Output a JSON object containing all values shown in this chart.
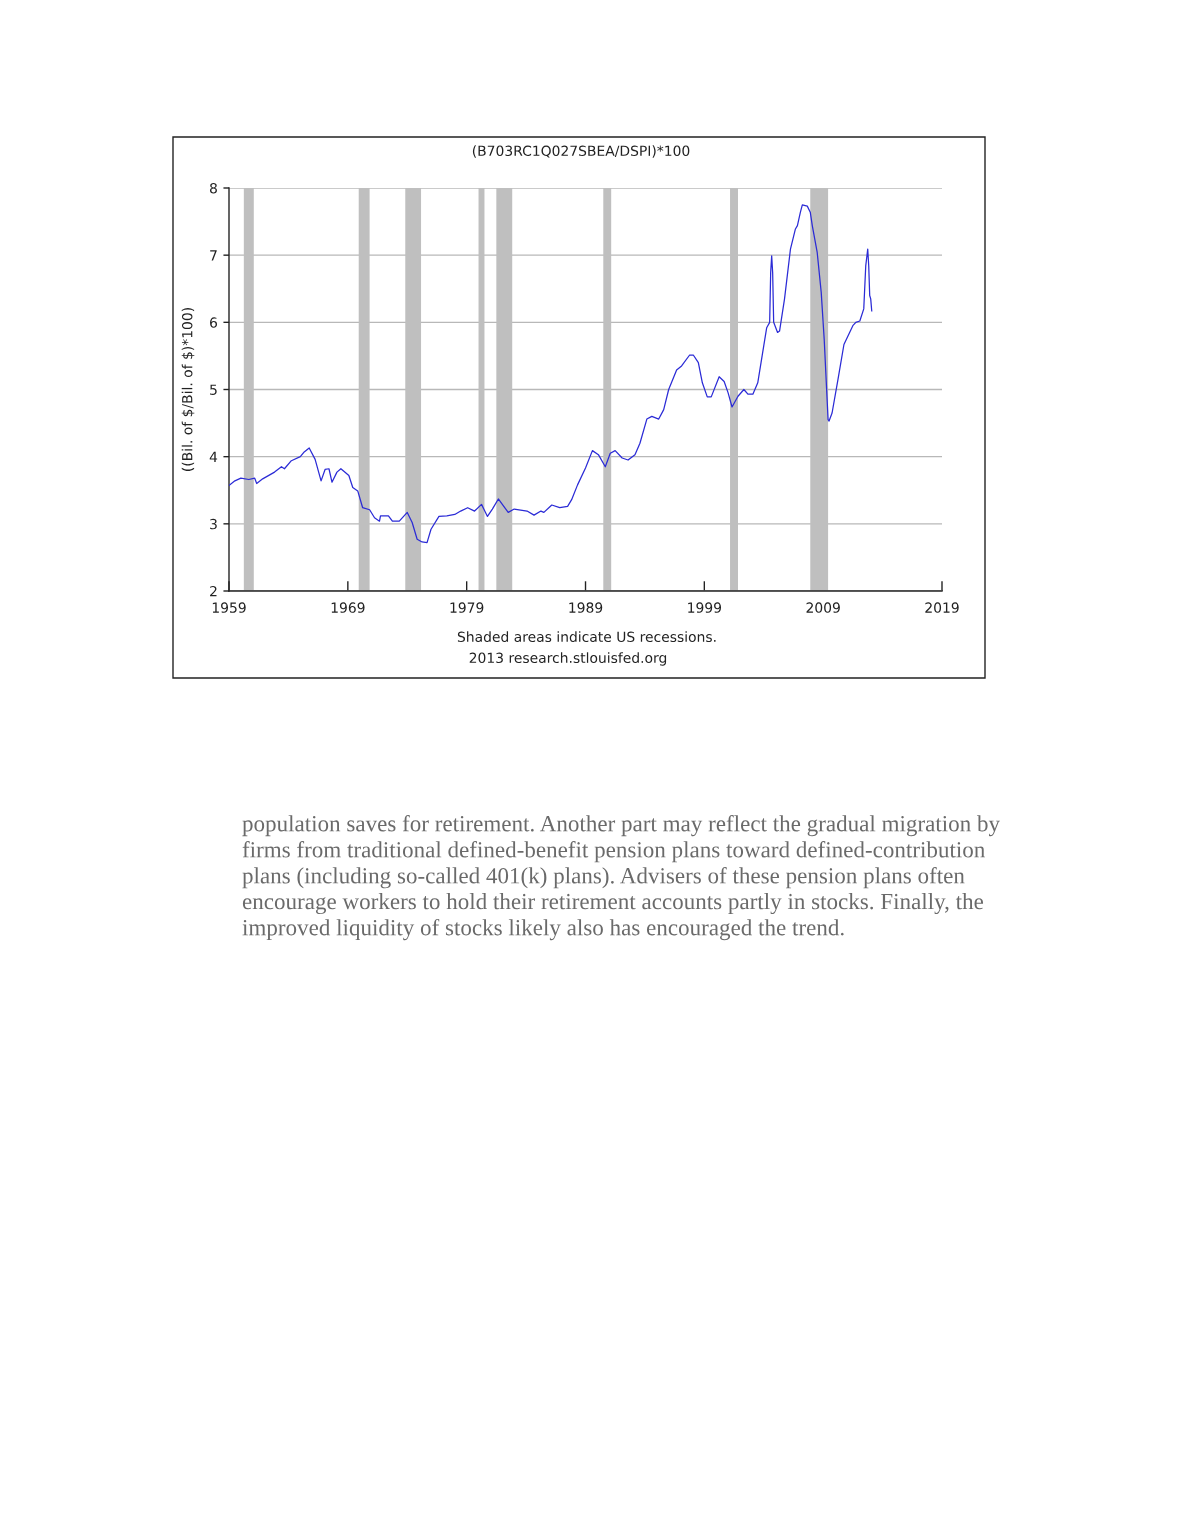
{
  "chart_data": {
    "type": "line",
    "title": "(B703RC1Q027SBEA/DSPI)*100",
    "ylabel": "((Bil. of $/Bil. of $)*100)",
    "annotations": [
      "Shaded areas indicate US recessions.",
      "2013 research.stlouisfed.org",
      "population saves for retirement. Another part may reflect the gradual migration by\nfirms from traditional defined-benefit pension plans toward defined-contribution\nplans (including so-called 401(k) plans). Advisers of these pension plans often\nencourage workers to hold their retirement accounts partly in stocks. Finally, the\nimproved liquidity of stocks likely also has encouraged the trend."
    ],
    "x": [
      "1959-01",
      "1959-07",
      "1960-01",
      "1960-09",
      "1961-03",
      "1961-05",
      "1961-11",
      "1962-11",
      "1963-06",
      "1963-09",
      "1964-04",
      "1965-01",
      "1965-05",
      "1965-10",
      "1966-04",
      "1966-10",
      "1967-02",
      "1967-06",
      "1967-09",
      "1968-02",
      "1968-06",
      "1969-02",
      "1969-06",
      "1969-11",
      "1970-04",
      "1970-11",
      "1971-04",
      "1971-09",
      "1971-10",
      "1972-06",
      "1972-10",
      "1973-05",
      "1974-01",
      "1974-06",
      "1974-11",
      "1975-04",
      "1975-09",
      "1976-01",
      "1976-09",
      "1977-05",
      "1978-01",
      "1978-07",
      "1979-02",
      "1979-09",
      "1980-04",
      "1980-10",
      "1981-03",
      "1981-09",
      "1982-01",
      "1982-07",
      "1983-01",
      "1984-02",
      "1984-09",
      "1985-04",
      "1985-07",
      "1986-03",
      "1986-11",
      "1987-07",
      "1987-11",
      "1988-05",
      "1989-01",
      "1989-08",
      "1990-02",
      "1990-09",
      "1991-02",
      "1991-07",
      "1992-02",
      "1992-08",
      "1993-03",
      "1993-08",
      "1994-03",
      "1994-08",
      "1995-03",
      "1995-08",
      "1996-01",
      "1996-09",
      "1997-02",
      "1997-10",
      "1998-02",
      "1998-07",
      "1998-11",
      "1999-04",
      "1999-08",
      "2000-04",
      "2000-09",
      "2001-01",
      "2001-05",
      "2001-11",
      "2002-05",
      "2002-09",
      "2003-02",
      "2003-07",
      "2004-01",
      "2004-04",
      "2004-07",
      "2004-08",
      "2004-09",
      "2004-10",
      "2004-11",
      "2005-03",
      "2005-05",
      "2005-10",
      "2006-04",
      "2006-09",
      "2006-11",
      "2007-02",
      "2007-04",
      "2007-09",
      "2007-12",
      "2008-02",
      "2008-07",
      "2008-11",
      "2009-02",
      "2009-06",
      "2009-07",
      "2009-10",
      "2010-04",
      "2010-10",
      "2011-07",
      "2011-10",
      "2012-02",
      "2012-06",
      "2012-08",
      "2012-10",
      "2012-11",
      "2012-12",
      "2013-01",
      "2013-02"
    ],
    "values": [
      3.57,
      3.64,
      3.68,
      3.66,
      3.68,
      3.6,
      3.67,
      3.77,
      3.85,
      3.82,
      3.94,
      4.0,
      4.07,
      4.13,
      3.96,
      3.64,
      3.81,
      3.82,
      3.62,
      3.77,
      3.82,
      3.72,
      3.54,
      3.49,
      3.24,
      3.21,
      3.09,
      3.04,
      3.12,
      3.12,
      3.04,
      3.04,
      3.17,
      3.02,
      2.77,
      2.73,
      2.72,
      2.92,
      3.11,
      3.12,
      3.14,
      3.19,
      3.24,
      3.19,
      3.29,
      3.11,
      3.22,
      3.37,
      3.29,
      3.17,
      3.22,
      3.19,
      3.13,
      3.19,
      3.17,
      3.28,
      3.24,
      3.26,
      3.36,
      3.58,
      3.83,
      4.09,
      4.03,
      3.85,
      4.05,
      4.09,
      3.98,
      3.95,
      4.03,
      4.2,
      4.56,
      4.6,
      4.56,
      4.7,
      5.0,
      5.29,
      5.35,
      5.51,
      5.51,
      5.4,
      5.1,
      4.89,
      4.89,
      5.19,
      5.12,
      4.95,
      4.74,
      4.9,
      5.0,
      4.93,
      4.93,
      5.1,
      5.65,
      5.92,
      6.0,
      6.74,
      6.99,
      6.74,
      6.0,
      5.85,
      5.87,
      6.35,
      7.09,
      7.39,
      7.44,
      7.64,
      7.75,
      7.73,
      7.64,
      7.44,
      7.04,
      6.45,
      5.75,
      4.55,
      4.53,
      4.65,
      5.15,
      5.67,
      5.95,
      6.0,
      6.02,
      6.2,
      6.84,
      7.09,
      6.84,
      6.4,
      6.35,
      6.17
    ],
    "color": "#2b2bd6",
    "line_style": "solid",
    "bands": [
      {
        "axis": "x",
        "from": "1960-04",
        "to": "1961-02",
        "color": "#bfbfbf"
      },
      {
        "axis": "x",
        "from": "1969-12",
        "to": "1970-11",
        "color": "#bfbfbf"
      },
      {
        "axis": "x",
        "from": "1973-11",
        "to": "1975-03",
        "color": "#bfbfbf"
      },
      {
        "axis": "x",
        "from": "1980-01",
        "to": "1980-07",
        "color": "#bfbfbf"
      },
      {
        "axis": "x",
        "from": "1981-07",
        "to": "1982-11",
        "color": "#bfbfbf"
      },
      {
        "axis": "x",
        "from": "1990-07",
        "to": "1991-03",
        "color": "#bfbfbf"
      },
      {
        "axis": "x",
        "from": "2001-03",
        "to": "2001-11",
        "color": "#bfbfbf"
      },
      {
        "axis": "x",
        "from": "2007-12",
        "to": "2009-06",
        "color": "#bfbfbf"
      }
    ],
    "xlim": [
      "1959-01",
      "2019-01"
    ],
    "xticks": [
      {
        "value": "1959-01",
        "label": "1959"
      },
      {
        "value": "1969-01",
        "label": "1969"
      },
      {
        "value": "1979-01",
        "label": "1979"
      },
      {
        "value": "1989-01",
        "label": "1989"
      },
      {
        "value": "1999-01",
        "label": "1999"
      },
      {
        "value": "2009-01",
        "label": "2009"
      },
      {
        "value": "2019-01",
        "label": "2019"
      }
    ],
    "ylim": [
      2,
      8
    ],
    "yticks": [
      2,
      3,
      4,
      5,
      6,
      7,
      8
    ],
    "grid": "y"
  }
}
